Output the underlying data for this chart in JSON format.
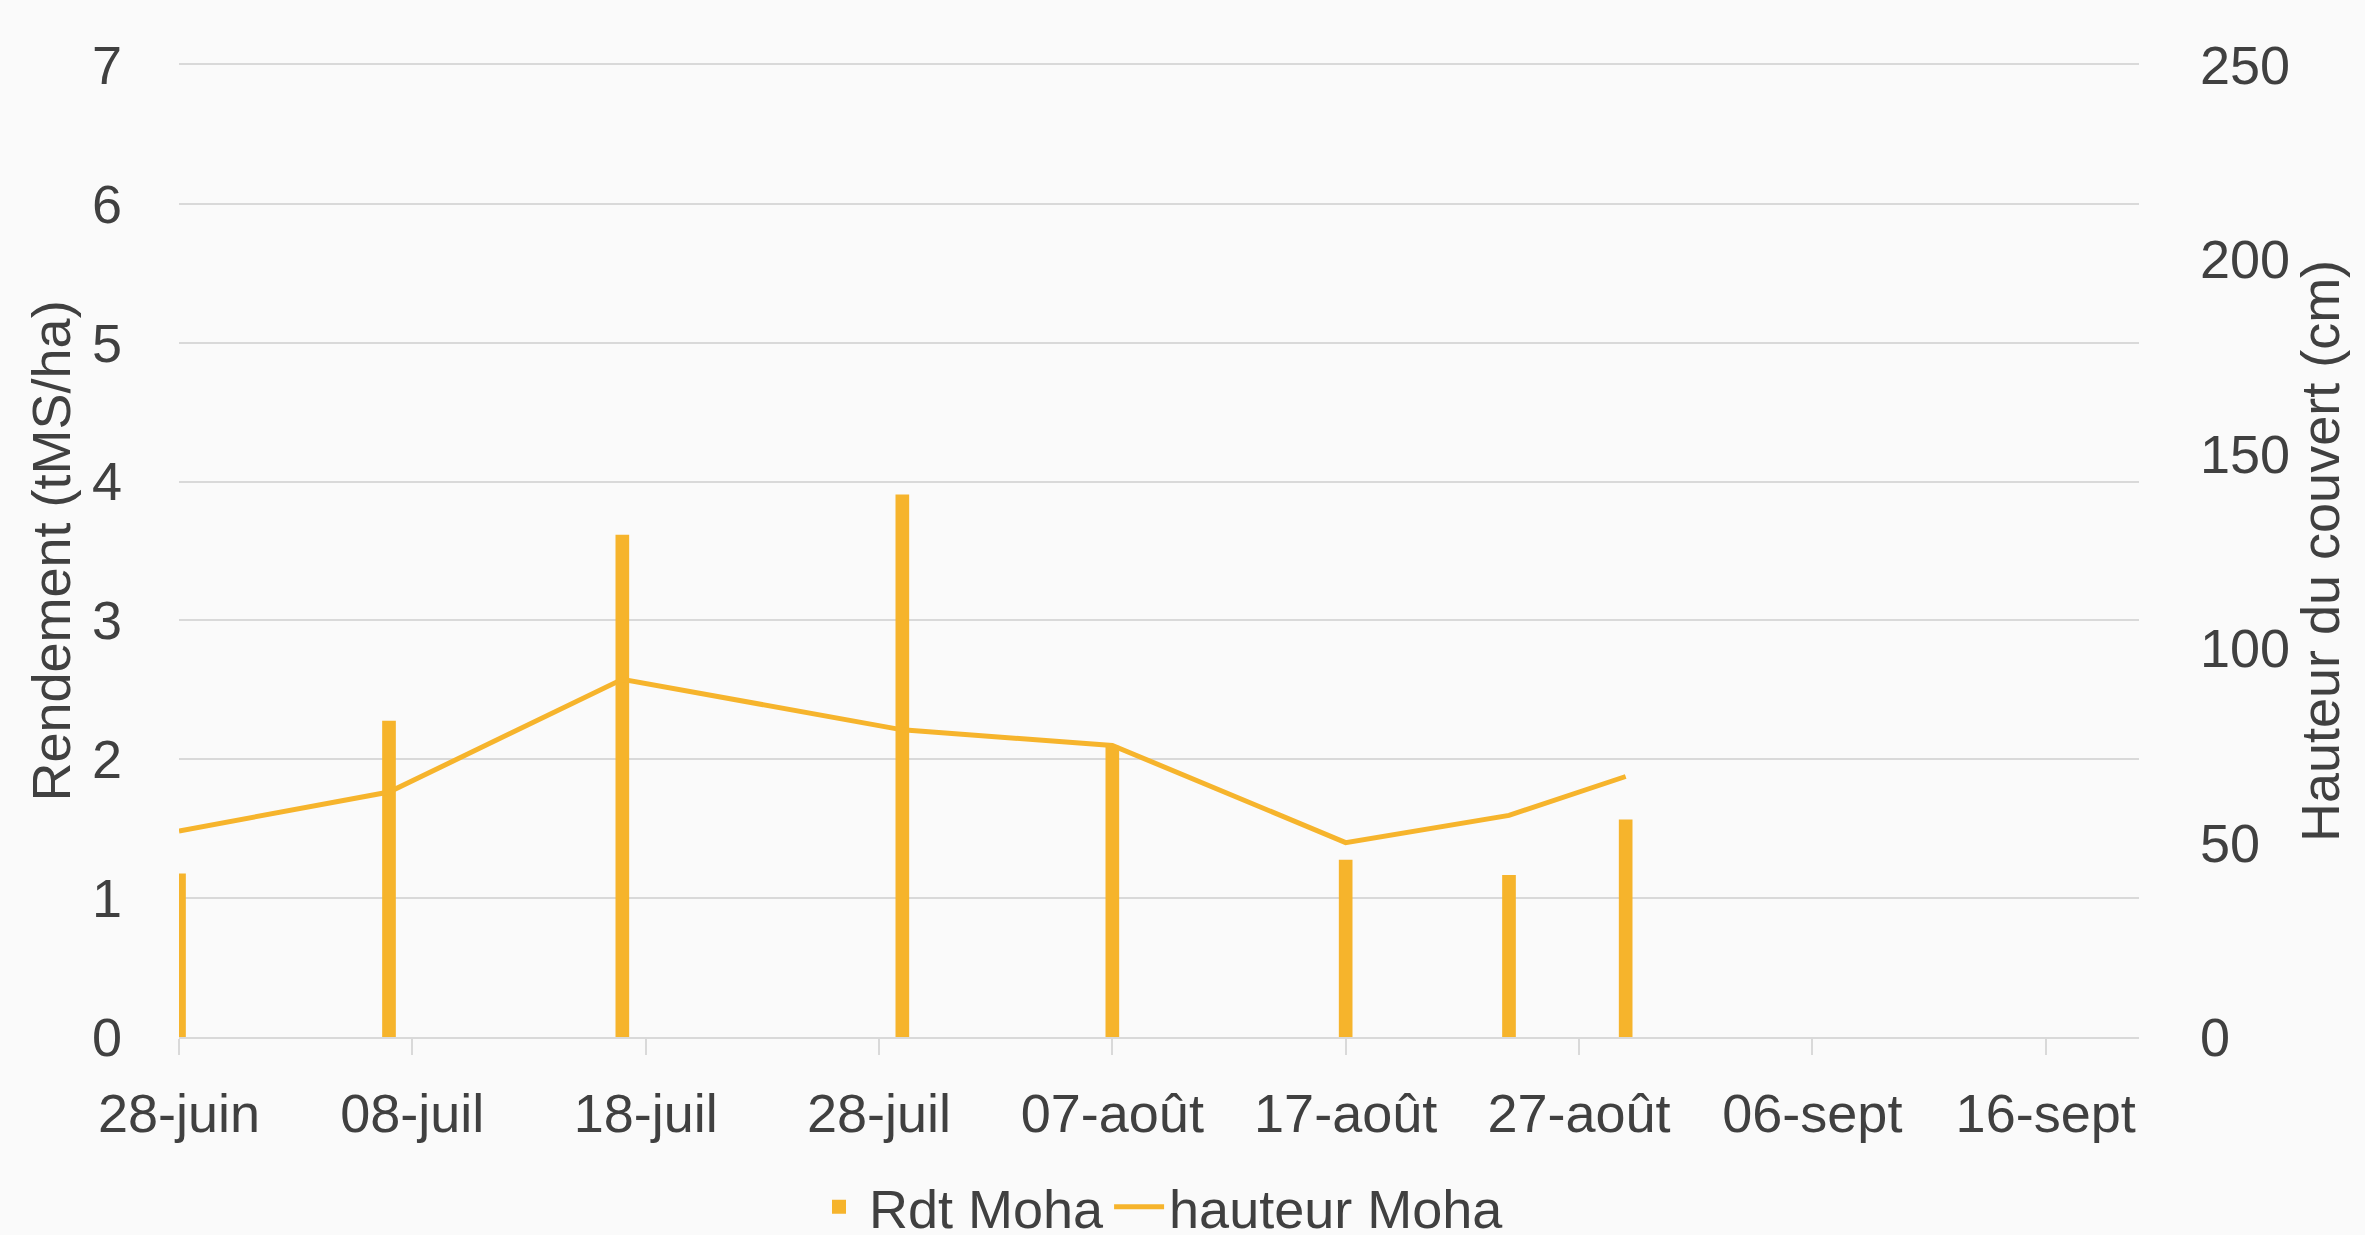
{
  "chart_data": {
    "type": "bar",
    "x": [
      "--06-28",
      "--07-07",
      "--07-17",
      "--07-29",
      "--08-07",
      "--08-17",
      "--08-24",
      "--08-29"
    ],
    "series": [
      {
        "name": "Rdt Moha",
        "color": "#f6b42c",
        "values": [
          1.17,
          2.27,
          3.61,
          3.9,
          2.09,
          1.27,
          1.16,
          1.56
        ]
      },
      {
        "name": "hauteur Moha",
        "type": "line",
        "axis": "y2",
        "color": "#f6b42c",
        "values": [
          53,
          63,
          92,
          79,
          75,
          50,
          57,
          67
        ]
      }
    ],
    "ylabel": "Rendement (tMS/ha)",
    "y2label": "Hauteur du couvert (cm)",
    "xlim": [
      "--06-28",
      "--09-20"
    ],
    "xticks": [
      {
        "value": "--06-28",
        "label": "28-juin"
      },
      {
        "value": "--07-08",
        "label": "08-juil"
      },
      {
        "value": "--07-18",
        "label": "18-juil"
      },
      {
        "value": "--07-28",
        "label": "28-juil"
      },
      {
        "value": "--08-07",
        "label": "07-août"
      },
      {
        "value": "--08-17",
        "label": "17-août"
      },
      {
        "value": "--08-27",
        "label": "27-août"
      },
      {
        "value": "--09-06",
        "label": "06-sept"
      },
      {
        "value": "--09-16",
        "label": "16-sept"
      }
    ],
    "ylim": [
      0,
      7
    ],
    "yticks": [
      0,
      1,
      2,
      3,
      4,
      5,
      6,
      7
    ],
    "y2lim": [
      0,
      250
    ],
    "y2ticks": [
      0,
      50,
      100,
      150,
      200,
      250
    ],
    "grid": "y",
    "legend": "bottom",
    "marker": "none",
    "line_style": "solid"
  }
}
